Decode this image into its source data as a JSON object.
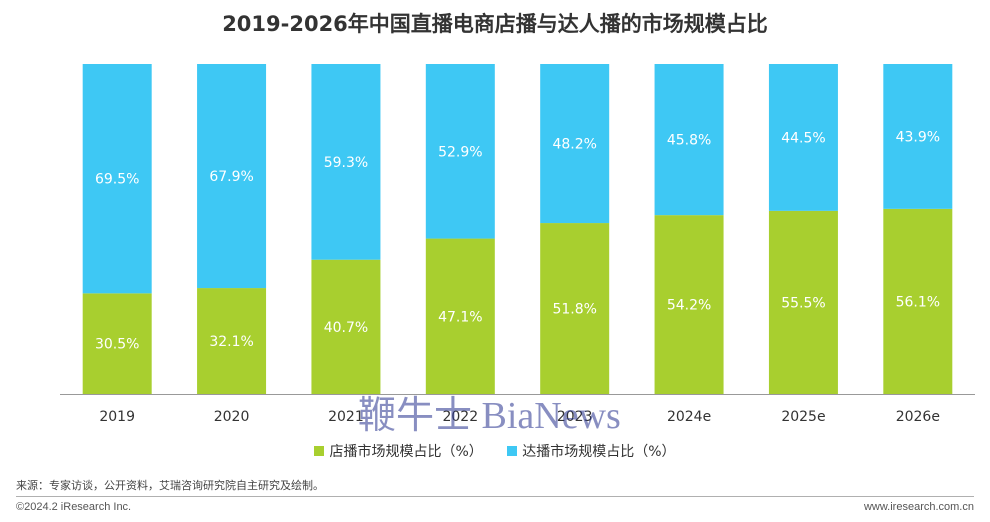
{
  "chart_data": {
    "type": "bar",
    "stacked": true,
    "title": "2019-2026年中国直播电商店播与达人播的市场规模占比",
    "categories": [
      "2019",
      "2020",
      "2021",
      "2022",
      "2023",
      "2024e",
      "2025e",
      "2026e"
    ],
    "series": [
      {
        "name": "店播市场规模占比（%）",
        "color": "#a8cf2f",
        "values": [
          30.5,
          32.1,
          40.7,
          47.1,
          51.8,
          54.2,
          55.5,
          56.1
        ]
      },
      {
        "name": "达播市场规模占比（%）",
        "color": "#3ec8f4",
        "values": [
          69.5,
          67.9,
          59.3,
          52.9,
          48.2,
          45.8,
          44.5,
          43.9
        ]
      }
    ],
    "ylim": [
      0,
      100
    ],
    "value_suffix": "%",
    "legend_position": "bottom"
  },
  "source": "来源：专家访谈，公开资料，艾瑞咨询研究院自主研究及绘制。",
  "copyright": "©2024.2 iResearch Inc.",
  "website": "www.iresearch.com.cn",
  "watermark": "鞭牛士 BiaNews"
}
